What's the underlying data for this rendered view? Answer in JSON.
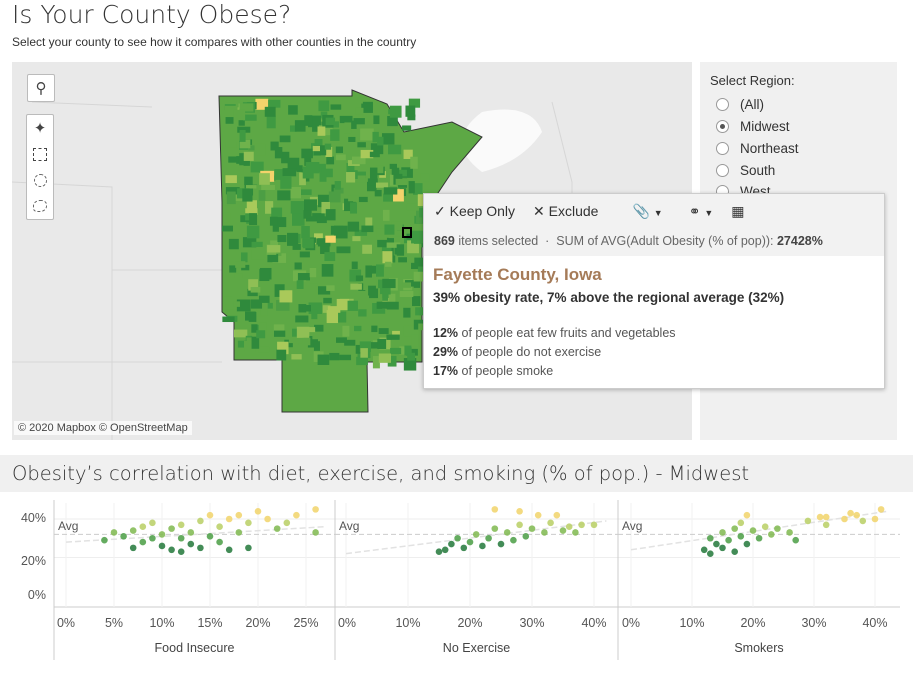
{
  "header": {
    "title": "Is Your County Obese?",
    "subtitle": "Select your county to see how it compares with other counties in the country"
  },
  "map": {
    "credit": "© 2020 Mapbox © OpenStreetMap",
    "tools": [
      "search-icon",
      "pin-icon",
      "rect-select-icon",
      "radial-select-icon",
      "lasso-select-icon"
    ]
  },
  "region_filter": {
    "label": "Select Region:",
    "options": [
      {
        "label": "(All)",
        "selected": false
      },
      {
        "label": "Midwest",
        "selected": true
      },
      {
        "label": "Northeast",
        "selected": false
      },
      {
        "label": "South",
        "selected": false
      },
      {
        "label": "West",
        "selected": false
      }
    ]
  },
  "tooltip": {
    "keep_only": "Keep Only",
    "exclude": "Exclude",
    "count": "869",
    "items_selected": " items selected  ·  SUM of AVG(Adult Obesity (% of pop)): ",
    "sum": "27428%",
    "county": "Fayette County, Iowa",
    "rate_line": "39% obesity rate, 7% above the regional average (32%)",
    "stats": [
      {
        "value": "12%",
        "text": " of people eat few fruits and vegetables"
      },
      {
        "value": "29%",
        "text": " of people do not exercise"
      },
      {
        "value": "17%",
        "text": " of people smoke"
      }
    ]
  },
  "section": {
    "title": "Obesity’s correlation with diet, exercise, and smoking (% of pop.) - Midwest"
  },
  "colors": {
    "dark_green": "#1e7b3a",
    "mid_green": "#5aa84a",
    "light_green": "#a9c95a",
    "yellow": "#f3d36b",
    "panel_bg": "#f0f0f0",
    "tooltip_county": "#a57b58"
  },
  "chart_data": {
    "type": "scatter",
    "ylabel": "Adult Obesity (% of pop)",
    "ylim": [
      0,
      45
    ],
    "yticks": [
      "40%",
      "20%",
      "0%"
    ],
    "avg_label": "Avg",
    "avg_value": 32,
    "panels": [
      {
        "xlabel": "Food Insecure",
        "xlim": [
          0,
          27
        ],
        "xticks": [
          "0%",
          "5%",
          "10%",
          "15%",
          "20%",
          "25%"
        ],
        "xtick_values": [
          0,
          5,
          10,
          15,
          20,
          25
        ],
        "trend": [
          [
            0,
            28
          ],
          [
            27,
            36
          ]
        ],
        "points": [
          [
            4,
            29
          ],
          [
            5,
            33
          ],
          [
            6,
            31
          ],
          [
            7,
            25
          ],
          [
            7,
            34
          ],
          [
            8,
            28
          ],
          [
            8,
            36
          ],
          [
            9,
            30
          ],
          [
            9,
            38
          ],
          [
            10,
            26
          ],
          [
            10,
            32
          ],
          [
            11,
            24
          ],
          [
            11,
            35
          ],
          [
            12,
            23
          ],
          [
            12,
            30
          ],
          [
            12,
            37
          ],
          [
            13,
            27
          ],
          [
            13,
            33
          ],
          [
            14,
            25
          ],
          [
            14,
            39
          ],
          [
            15,
            31
          ],
          [
            15,
            42
          ],
          [
            16,
            28
          ],
          [
            16,
            36
          ],
          [
            17,
            24
          ],
          [
            17,
            40
          ],
          [
            18,
            33
          ],
          [
            18,
            42
          ],
          [
            19,
            25
          ],
          [
            19,
            38
          ],
          [
            20,
            44
          ],
          [
            21,
            40
          ],
          [
            22,
            35
          ],
          [
            23,
            38
          ],
          [
            24,
            42
          ],
          [
            26,
            45
          ],
          [
            26,
            33
          ]
        ]
      },
      {
        "xlabel": "No Exercise",
        "xlim": [
          0,
          42
        ],
        "xticks": [
          "0%",
          "10%",
          "20%",
          "30%",
          "40%"
        ],
        "xtick_values": [
          0,
          10,
          20,
          30,
          40
        ],
        "trend": [
          [
            0,
            22
          ],
          [
            42,
            39
          ]
        ],
        "points": [
          [
            15,
            23
          ],
          [
            16,
            24
          ],
          [
            17,
            27
          ],
          [
            18,
            30
          ],
          [
            19,
            25
          ],
          [
            20,
            28
          ],
          [
            21,
            32
          ],
          [
            22,
            26
          ],
          [
            23,
            30
          ],
          [
            24,
            35
          ],
          [
            24,
            45
          ],
          [
            25,
            27
          ],
          [
            26,
            33
          ],
          [
            27,
            29
          ],
          [
            28,
            37
          ],
          [
            28,
            44
          ],
          [
            29,
            31
          ],
          [
            30,
            35
          ],
          [
            31,
            42
          ],
          [
            32,
            33
          ],
          [
            33,
            38
          ],
          [
            34,
            42
          ],
          [
            35,
            34
          ],
          [
            36,
            36
          ],
          [
            37,
            33
          ],
          [
            38,
            37
          ],
          [
            40,
            37
          ]
        ]
      },
      {
        "xlabel": "Smokers",
        "xlim": [
          0,
          42
        ],
        "xticks": [
          "0%",
          "10%",
          "20%",
          "30%",
          "40%"
        ],
        "xtick_values": [
          0,
          10,
          20,
          30,
          40
        ],
        "trend": [
          [
            0,
            24
          ],
          [
            42,
            44
          ]
        ],
        "points": [
          [
            12,
            24
          ],
          [
            13,
            22
          ],
          [
            13,
            30
          ],
          [
            14,
            27
          ],
          [
            15,
            33
          ],
          [
            15,
            25
          ],
          [
            16,
            29
          ],
          [
            17,
            23
          ],
          [
            17,
            35
          ],
          [
            18,
            31
          ],
          [
            18,
            38
          ],
          [
            19,
            27
          ],
          [
            19,
            42
          ],
          [
            20,
            34
          ],
          [
            21,
            30
          ],
          [
            22,
            36
          ],
          [
            23,
            32
          ],
          [
            24,
            35
          ],
          [
            26,
            33
          ],
          [
            27,
            29
          ],
          [
            29,
            39
          ],
          [
            31,
            41
          ],
          [
            32,
            37
          ],
          [
            32,
            41
          ],
          [
            35,
            40
          ],
          [
            36,
            43
          ],
          [
            37,
            42
          ],
          [
            38,
            39
          ],
          [
            40,
            40
          ],
          [
            41,
            45
          ]
        ]
      }
    ]
  }
}
